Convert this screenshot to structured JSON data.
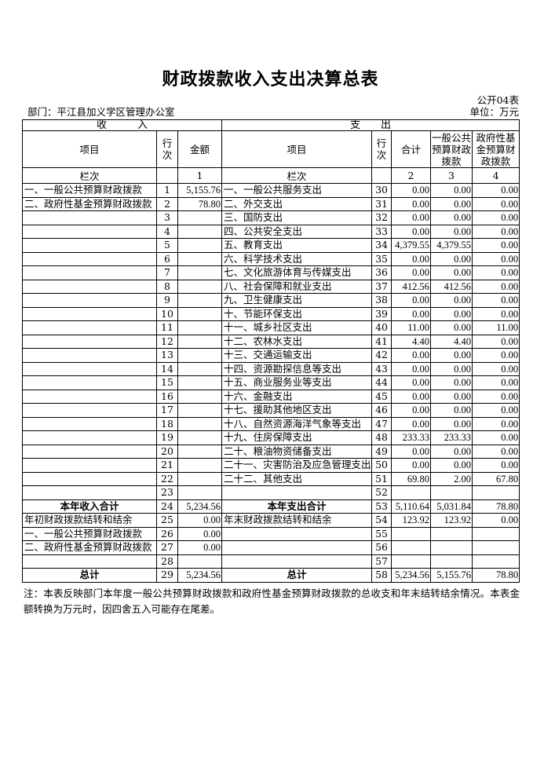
{
  "page": {
    "title": "财政拨款收入支出决算总表",
    "form_code": "公开04表",
    "department": "部门：平江县加义学区管理办公室",
    "unit": "单位：万元",
    "note": "注：本表反映部门本年度一般公共预算财政拨款和政府性基金预算财政拨款的总收支和年末结转结余情况。本表金额转换为万元时，因四舍五入可能存在尾差。"
  },
  "colors": {
    "text": "#000000",
    "border": "#000000",
    "background": "#ffffff"
  },
  "table": {
    "income_header": "收　　　入",
    "expense_header": "支　　出",
    "columns": {
      "item": "项目",
      "line_no": "行次",
      "amount": "金额",
      "total": "合计",
      "general_budget": "一般公共预算财政拨款",
      "gov_fund_budget": "政府性基金预算财政拨款"
    },
    "index_row": {
      "label": "栏次",
      "amount": "1",
      "total": "2",
      "general": "3",
      "fund": "4"
    },
    "rows": [
      {
        "inc_item": "一、一般公共预算财政拨款",
        "inc_line": "1",
        "inc_amount": "5,155.76",
        "exp_item": "一、一般公共服务支出",
        "exp_line": "30",
        "exp_total": "0.00",
        "exp_general": "0.00",
        "exp_fund": "0.00"
      },
      {
        "inc_item": "二、政府性基金预算财政拨款",
        "inc_line": "2",
        "inc_amount": "78.80",
        "exp_item": "二、外交支出",
        "exp_line": "31",
        "exp_total": "0.00",
        "exp_general": "0.00",
        "exp_fund": "0.00"
      },
      {
        "inc_item": "",
        "inc_line": "3",
        "inc_amount": "",
        "exp_item": "三、国防支出",
        "exp_line": "32",
        "exp_total": "0.00",
        "exp_general": "0.00",
        "exp_fund": "0.00"
      },
      {
        "inc_item": "",
        "inc_line": "4",
        "inc_amount": "",
        "exp_item": "四、公共安全支出",
        "exp_line": "33",
        "exp_total": "0.00",
        "exp_general": "0.00",
        "exp_fund": "0.00"
      },
      {
        "inc_item": "",
        "inc_line": "5",
        "inc_amount": "",
        "exp_item": "五、教育支出",
        "exp_line": "34",
        "exp_total": "4,379.55",
        "exp_general": "4,379.55",
        "exp_fund": "0.00"
      },
      {
        "inc_item": "",
        "inc_line": "6",
        "inc_amount": "",
        "exp_item": "六、科学技术支出",
        "exp_line": "35",
        "exp_total": "0.00",
        "exp_general": "0.00",
        "exp_fund": "0.00"
      },
      {
        "inc_item": "",
        "inc_line": "7",
        "inc_amount": "",
        "exp_item": "七、文化旅游体育与传媒支出",
        "exp_line": "36",
        "exp_total": "0.00",
        "exp_general": "0.00",
        "exp_fund": "0.00"
      },
      {
        "inc_item": "",
        "inc_line": "8",
        "inc_amount": "",
        "exp_item": "八、社会保障和就业支出",
        "exp_line": "37",
        "exp_total": "412.56",
        "exp_general": "412.56",
        "exp_fund": "0.00"
      },
      {
        "inc_item": "",
        "inc_line": "9",
        "inc_amount": "",
        "exp_item": "九、卫生健康支出",
        "exp_line": "38",
        "exp_total": "0.00",
        "exp_general": "0.00",
        "exp_fund": "0.00"
      },
      {
        "inc_item": "",
        "inc_line": "10",
        "inc_amount": "",
        "exp_item": "十、节能环保支出",
        "exp_line": "39",
        "exp_total": "0.00",
        "exp_general": "0.00",
        "exp_fund": "0.00"
      },
      {
        "inc_item": "",
        "inc_line": "11",
        "inc_amount": "",
        "exp_item": "十一、城乡社区支出",
        "exp_line": "40",
        "exp_total": "11.00",
        "exp_general": "0.00",
        "exp_fund": "11.00"
      },
      {
        "inc_item": "",
        "inc_line": "12",
        "inc_amount": "",
        "exp_item": "十二、农林水支出",
        "exp_line": "41",
        "exp_total": "4.40",
        "exp_general": "4.40",
        "exp_fund": "0.00"
      },
      {
        "inc_item": "",
        "inc_line": "13",
        "inc_amount": "",
        "exp_item": "十三、交通运输支出",
        "exp_line": "42",
        "exp_total": "0.00",
        "exp_general": "0.00",
        "exp_fund": "0.00"
      },
      {
        "inc_item": "",
        "inc_line": "14",
        "inc_amount": "",
        "exp_item": "十四、资源勘探信息等支出",
        "exp_line": "43",
        "exp_total": "0.00",
        "exp_general": "0.00",
        "exp_fund": "0.00"
      },
      {
        "inc_item": "",
        "inc_line": "15",
        "inc_amount": "",
        "exp_item": "十五、商业服务业等支出",
        "exp_line": "44",
        "exp_total": "0.00",
        "exp_general": "0.00",
        "exp_fund": "0.00"
      },
      {
        "inc_item": "",
        "inc_line": "16",
        "inc_amount": "",
        "exp_item": "十六、金融支出",
        "exp_line": "45",
        "exp_total": "0.00",
        "exp_general": "0.00",
        "exp_fund": "0.00"
      },
      {
        "inc_item": "",
        "inc_line": "17",
        "inc_amount": "",
        "exp_item": "十七、援助其他地区支出",
        "exp_line": "46",
        "exp_total": "0.00",
        "exp_general": "0.00",
        "exp_fund": "0.00"
      },
      {
        "inc_item": "",
        "inc_line": "18",
        "inc_amount": "",
        "exp_item": "十八、自然资源海洋气象等支出",
        "exp_line": "47",
        "exp_total": "0.00",
        "exp_general": "0.00",
        "exp_fund": "0.00"
      },
      {
        "inc_item": "",
        "inc_line": "19",
        "inc_amount": "",
        "exp_item": "十九、住房保障支出",
        "exp_line": "48",
        "exp_total": "233.33",
        "exp_general": "233.33",
        "exp_fund": "0.00"
      },
      {
        "inc_item": "",
        "inc_line": "20",
        "inc_amount": "",
        "exp_item": "二十、粮油物资储备支出",
        "exp_line": "49",
        "exp_total": "0.00",
        "exp_general": "0.00",
        "exp_fund": "0.00"
      },
      {
        "inc_item": "",
        "inc_line": "21",
        "inc_amount": "",
        "exp_item": "二十一、灾害防治及应急管理支出",
        "exp_line": "50",
        "exp_total": "0.00",
        "exp_general": "0.00",
        "exp_fund": "0.00"
      },
      {
        "inc_item": "",
        "inc_line": "22",
        "inc_amount": "",
        "exp_item": "二十二、其他支出",
        "exp_line": "51",
        "exp_total": "69.80",
        "exp_general": "2.00",
        "exp_fund": "67.80"
      },
      {
        "inc_item": "",
        "inc_line": "23",
        "inc_amount": "",
        "exp_item": "",
        "exp_line": "52",
        "exp_total": "",
        "exp_general": "",
        "exp_fund": ""
      },
      {
        "inc_item": "本年收入合计",
        "inc_line": "24",
        "inc_amount": "5,234.56",
        "exp_item": "本年支出合计",
        "exp_line": "53",
        "exp_total": "5,110.64",
        "exp_general": "5,031.84",
        "exp_fund": "78.80",
        "total": true
      },
      {
        "inc_item": "年初财政拨款结转和结余",
        "inc_line": "25",
        "inc_amount": "0.00",
        "exp_item": "年末财政拨款结转和结余",
        "exp_line": "54",
        "exp_total": "123.92",
        "exp_general": "123.92",
        "exp_fund": "0.00"
      },
      {
        "inc_item": "一、一般公共预算财政拨款",
        "inc_line": "26",
        "inc_amount": "0.00",
        "exp_item": "",
        "exp_line": "55",
        "exp_total": "",
        "exp_general": "",
        "exp_fund": ""
      },
      {
        "inc_item": "二、政府性基金预算财政拨款",
        "inc_line": "27",
        "inc_amount": "0.00",
        "exp_item": "",
        "exp_line": "56",
        "exp_total": "",
        "exp_general": "",
        "exp_fund": ""
      },
      {
        "inc_item": "",
        "inc_line": "28",
        "inc_amount": "",
        "exp_item": "",
        "exp_line": "57",
        "exp_total": "",
        "exp_general": "",
        "exp_fund": ""
      },
      {
        "inc_item": "总计",
        "inc_line": "29",
        "inc_amount": "5,234.56",
        "exp_item": "总计",
        "exp_line": "58",
        "exp_total": "5,234.56",
        "exp_general": "5,155.76",
        "exp_fund": "78.80",
        "total": true
      }
    ]
  }
}
